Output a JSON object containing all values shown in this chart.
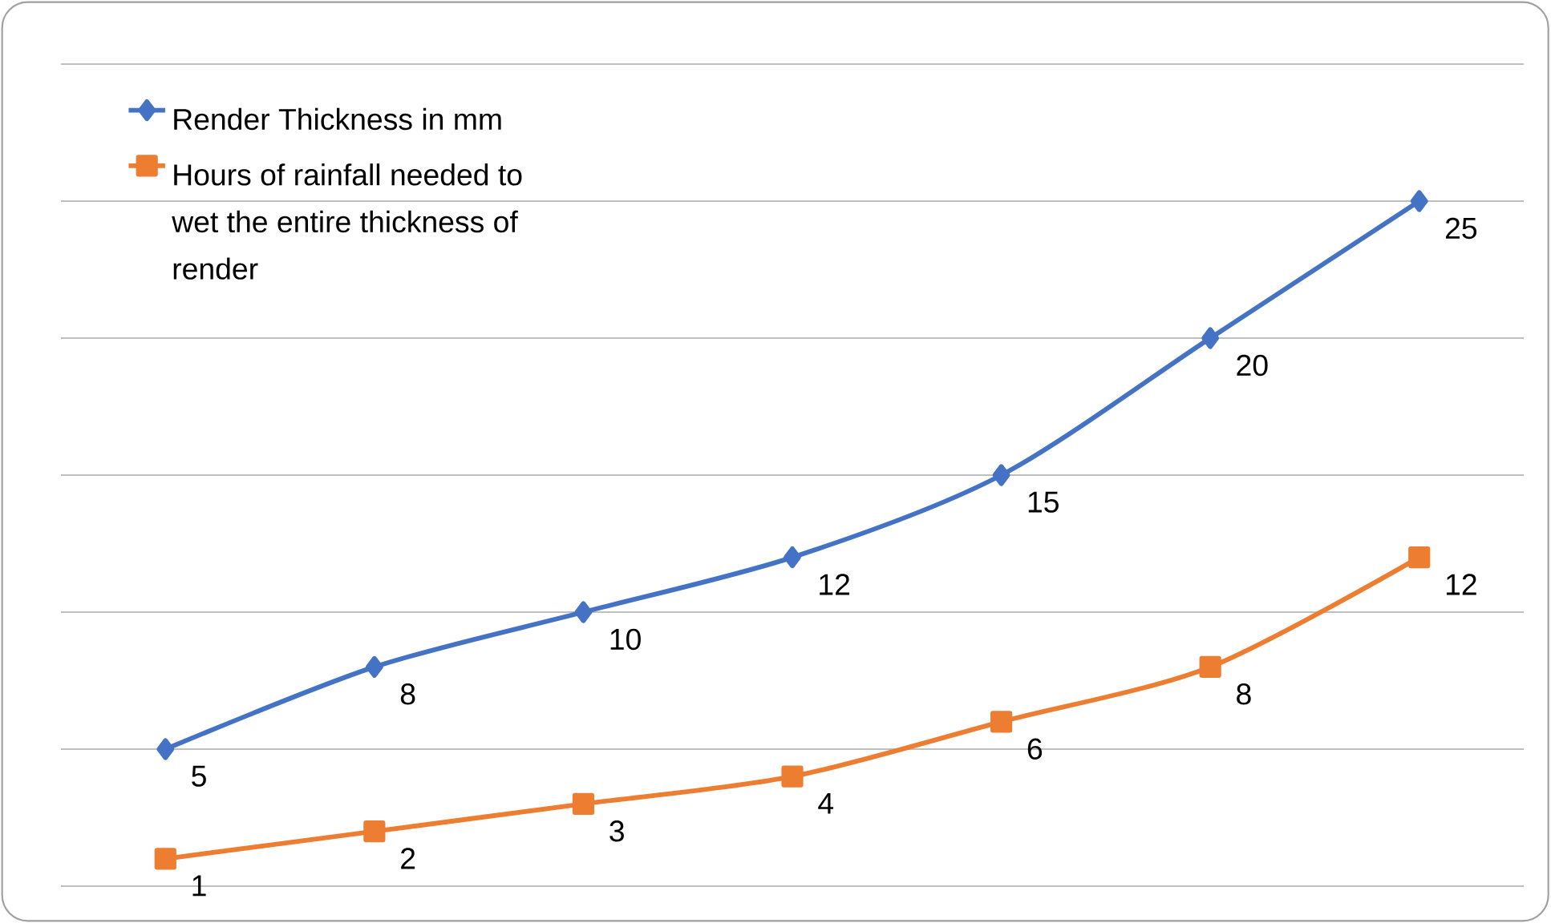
{
  "chart_data": {
    "type": "line",
    "categories": [
      null,
      null,
      null,
      null,
      null,
      null,
      null
    ],
    "series": [
      {
        "name": "Render Thickness in mm",
        "color": "#4472c4",
        "marker": "diamond",
        "values": [
          5,
          8,
          10,
          12,
          15,
          20,
          25
        ]
      },
      {
        "name": "Hours of rainfall needed to wet the entire thickness of render",
        "color": "#ed7d31",
        "marker": "square",
        "values": [
          1,
          2,
          3,
          4,
          6,
          8,
          12
        ]
      }
    ],
    "ylim": [
      0,
      30
    ],
    "yticks": [
      {
        "value": 0,
        "label": null
      },
      {
        "value": 5,
        "label": null
      },
      {
        "value": 10,
        "label": null
      },
      {
        "value": 15,
        "label": null
      },
      {
        "value": 20,
        "label": null
      },
      {
        "value": 25,
        "label": null
      },
      {
        "value": 30,
        "label": null
      }
    ],
    "grid": "y",
    "legend": "top left",
    "data_labels": true
  }
}
